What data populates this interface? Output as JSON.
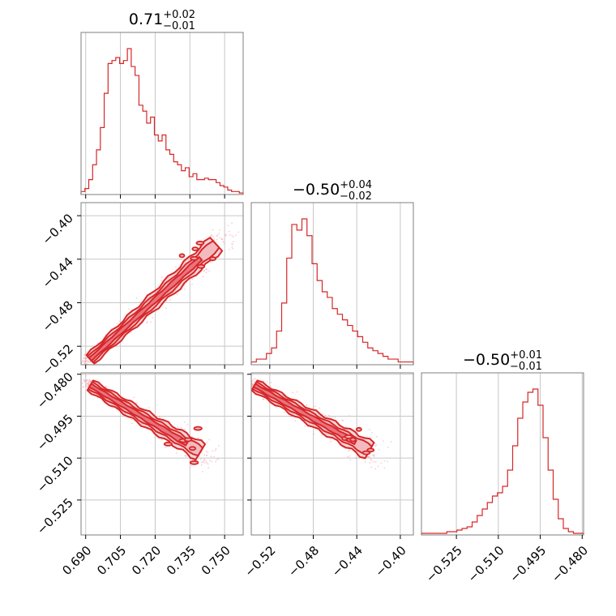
{
  "chart_data": {
    "type": "corner",
    "hist_color": "#d62728",
    "contour_color": "#d62728",
    "contour_fill_color": "#f2b8bd",
    "point_color": "#f4a6ad",
    "grid": true,
    "parameters": [
      {
        "median": "0.71",
        "plus": "+0.02",
        "minus": "−0.01",
        "range": [
          0.688,
          0.758
        ]
      },
      {
        "median": "−0.50",
        "plus": "+0.04",
        "minus": "−0.02",
        "range": [
          -0.537,
          -0.388
        ]
      },
      {
        "median": "−0.50",
        "plus": "+0.01",
        "minus": "−0.01",
        "range": [
          -0.5375,
          -0.4795
        ]
      }
    ],
    "ticks": [
      {
        "values": [
          0.69,
          0.705,
          0.72,
          0.735,
          0.75
        ],
        "labels": [
          "0.690",
          "0.705",
          "0.720",
          "0.735",
          "0.750"
        ]
      },
      {
        "values": [
          -0.52,
          -0.48,
          -0.44,
          -0.4
        ],
        "labels": [
          "−0.52",
          "−0.48",
          "−0.44",
          "−0.40"
        ]
      },
      {
        "values": [
          -0.525,
          -0.51,
          -0.495,
          -0.48
        ],
        "labels": [
          "−0.525",
          "−0.510",
          "−0.495",
          "−0.480"
        ]
      }
    ],
    "hist1d": [
      [
        2,
        4,
        10,
        20,
        30,
        45,
        68,
        88,
        90,
        92,
        88,
        90,
        98,
        86,
        80,
        60,
        56,
        48,
        52,
        40,
        36,
        40,
        30,
        27,
        22,
        20,
        16,
        18,
        12,
        14,
        10,
        10,
        11,
        10,
        10,
        8,
        6,
        5,
        3,
        2,
        2,
        1
      ],
      [
        1,
        2,
        2,
        4,
        6,
        12,
        22,
        38,
        50,
        48,
        52,
        46,
        36,
        30,
        26,
        24,
        20,
        18,
        16,
        14,
        12,
        10,
        8,
        6,
        5,
        4,
        3,
        2,
        2,
        1,
        1,
        1
      ],
      [
        1,
        1,
        1,
        1,
        1,
        2,
        2,
        3,
        4,
        5,
        8,
        12,
        16,
        20,
        24,
        26,
        30,
        40,
        55,
        72,
        82,
        88,
        90,
        80,
        60,
        40,
        22,
        10,
        4,
        2,
        1,
        1
      ]
    ],
    "contours": [
      {
        "x": 0,
        "y": 1,
        "centers": [
          [
            0.692,
            -0.532
          ],
          [
            0.748,
            -0.423
          ]
        ],
        "width": [
          0.0025,
          0.0045
        ]
      },
      {
        "x": 0,
        "y": 2,
        "centers": [
          [
            0.692,
            -0.484
          ],
          [
            0.741,
            -0.5085
          ]
        ],
        "width": [
          0.002,
          0.0018
        ]
      },
      {
        "x": 1,
        "y": 2,
        "centers": [
          [
            -0.534,
            -0.484
          ],
          [
            -0.425,
            -0.508
          ]
        ],
        "width": [
          0.003,
          0.0015
        ]
      }
    ]
  }
}
